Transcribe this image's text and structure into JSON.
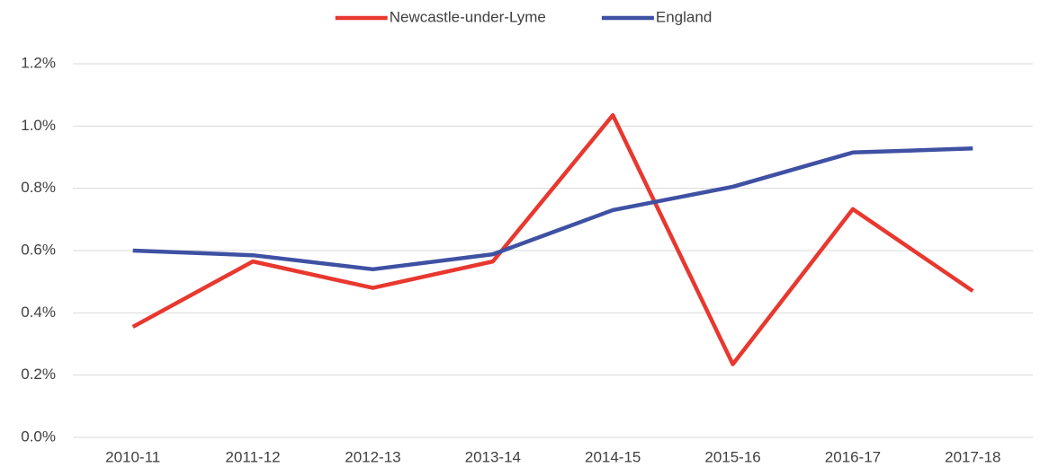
{
  "chart_data": {
    "type": "line",
    "categories": [
      "2010-11",
      "2011-12",
      "2012-13",
      "2013-14",
      "2014-15",
      "2015-16",
      "2016-17",
      "2017-18"
    ],
    "series": [
      {
        "name": "Newcastle-under-Lyme",
        "color": "#e8382f",
        "values": [
          0.355,
          0.565,
          0.48,
          0.565,
          1.035,
          0.235,
          0.733,
          0.47
        ]
      },
      {
        "name": "England",
        "color": "#3f51a3",
        "values": [
          0.6,
          0.585,
          0.54,
          0.588,
          0.73,
          0.805,
          0.915,
          0.928
        ]
      }
    ],
    "ylim": [
      0,
      1.2
    ],
    "yticks": [
      {
        "value": 0,
        "label": "0.0%"
      },
      {
        "value": 0.2,
        "label": "0.2%"
      },
      {
        "value": 0.4,
        "label": "0.4%"
      },
      {
        "value": 0.6,
        "label": "0.6%"
      },
      {
        "value": 0.8,
        "label": "0.8%"
      },
      {
        "value": 1.0,
        "label": "1.0%"
      },
      {
        "value": 1.2,
        "label": "1.2%"
      }
    ],
    "grid": true,
    "legend": "top"
  }
}
